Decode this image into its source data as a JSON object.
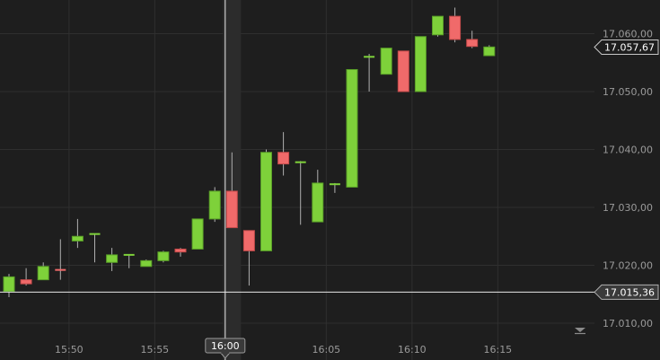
{
  "chart_data": {
    "type": "candlestick",
    "title": "",
    "xlabel": "",
    "ylabel": "",
    "ylim": [
      17007.5,
      17064.5
    ],
    "y_ticks": [
      {
        "value": 17010,
        "label": "17.010,00"
      },
      {
        "value": 17020,
        "label": "17.020,00"
      },
      {
        "value": 17030,
        "label": "17.030,00"
      },
      {
        "value": 17040,
        "label": "17.040,00"
      },
      {
        "value": 17050,
        "label": "17.050,00"
      },
      {
        "value": 17060,
        "label": "17.060,00"
      }
    ],
    "x_ticks": [
      {
        "label": "15:50",
        "index": 3.5
      },
      {
        "label": "15:55",
        "index": 8.5
      },
      {
        "label": "16:05",
        "index": 18.5
      },
      {
        "label": "16:10",
        "index": 23.5
      },
      {
        "label": "16:15",
        "index": 28.5
      }
    ],
    "grid": true,
    "up_color": "#7ed13a",
    "down_color": "#f06a6a",
    "candles": [
      {
        "open": 17015.5,
        "high": 17018.5,
        "low": 17014.5,
        "close": 17018.0
      },
      {
        "open": 17017.5,
        "high": 17019.5,
        "low": 17016.5,
        "close": 17016.8
      },
      {
        "open": 17017.5,
        "high": 17020.5,
        "low": 17017.5,
        "close": 17019.8
      },
      {
        "open": 17019.2,
        "high": 17024.5,
        "low": 17017.5,
        "close": 17019.0
      },
      {
        "open": 17024.2,
        "high": 17028.0,
        "low": 17023.0,
        "close": 17025.0
      },
      {
        "open": 17025.4,
        "high": 17025.4,
        "low": 17020.5,
        "close": 17025.4
      },
      {
        "open": 17020.5,
        "high": 17023.0,
        "low": 17019.0,
        "close": 17021.8
      },
      {
        "open": 17021.8,
        "high": 17021.8,
        "low": 17019.5,
        "close": 17021.8
      },
      {
        "open": 17019.8,
        "high": 17021.0,
        "low": 17019.8,
        "close": 17020.8
      },
      {
        "open": 17020.8,
        "high": 17022.5,
        "low": 17020.5,
        "close": 17022.3
      },
      {
        "open": 17022.8,
        "high": 17023.0,
        "low": 17021.5,
        "close": 17022.3
      },
      {
        "open": 17022.8,
        "high": 17028.0,
        "low": 17022.8,
        "close": 17028.0
      },
      {
        "open": 17028.0,
        "high": 17033.5,
        "low": 17027.5,
        "close": 17032.8
      },
      {
        "open": 17032.8,
        "high": 17039.5,
        "low": 17026.5,
        "close": 17026.5
      },
      {
        "open": 17026.0,
        "high": 17026.0,
        "low": 17016.5,
        "close": 17022.5
      },
      {
        "open": 17022.5,
        "high": 17040.0,
        "low": 17022.5,
        "close": 17039.5
      },
      {
        "open": 17039.5,
        "high": 17043.0,
        "low": 17035.5,
        "close": 17037.5
      },
      {
        "open": 17037.8,
        "high": 17038.0,
        "low": 17027.0,
        "close": 17037.8
      },
      {
        "open": 17027.5,
        "high": 17036.5,
        "low": 17027.5,
        "close": 17034.2
      },
      {
        "open": 17034.0,
        "high": 17034.2,
        "low": 17032.5,
        "close": 17034.0
      },
      {
        "open": 17033.5,
        "high": 17053.8,
        "low": 17033.5,
        "close": 17053.8
      },
      {
        "open": 17056.0,
        "high": 17056.5,
        "low": 17050.0,
        "close": 17056.0
      },
      {
        "open": 17053.0,
        "high": 17057.5,
        "low": 17053.0,
        "close": 17057.5
      },
      {
        "open": 17057.0,
        "high": 17057.0,
        "low": 17050.0,
        "close": 17050.0
      },
      {
        "open": 17050.0,
        "high": 17059.5,
        "low": 17050.0,
        "close": 17059.5
      },
      {
        "open": 17059.8,
        "high": 17063.0,
        "low": 17059.5,
        "close": 17063.0
      },
      {
        "open": 17063.0,
        "high": 17064.5,
        "low": 17058.5,
        "close": 17059.0
      },
      {
        "open": 17059.0,
        "high": 17060.5,
        "low": 17057.5,
        "close": 17057.8
      },
      {
        "open": 17056.2,
        "high": 17058.0,
        "low": 17056.2,
        "close": 17057.7
      }
    ],
    "price_tags": [
      {
        "value": 17057.67,
        "label": "17.057,67",
        "style": "outline"
      },
      {
        "value": 17015.36,
        "label": "17.015,36",
        "style": "filled"
      }
    ],
    "crosshair": {
      "price": 17015.36,
      "index": 13,
      "label": "16:00"
    }
  },
  "icons": {
    "scroll_down": "double-chevron-down-icon"
  }
}
